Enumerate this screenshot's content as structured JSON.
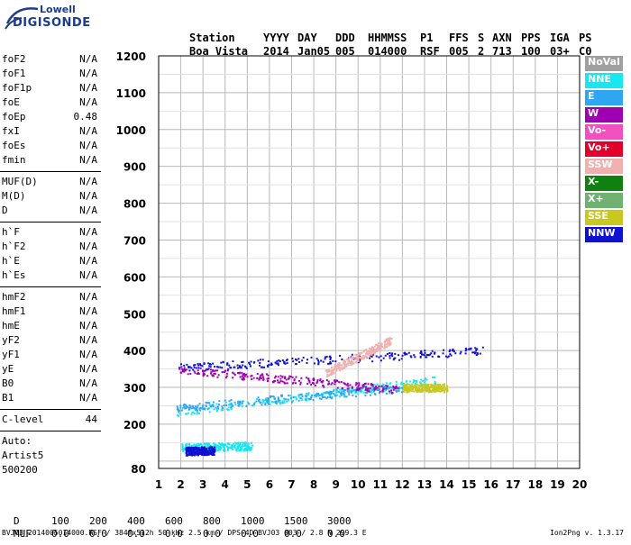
{
  "logo": {
    "line1": "Lowell",
    "line2": "DIGISONDE"
  },
  "header": {
    "row1": [
      "Station",
      "YYYY",
      "DAY",
      "DDD",
      "HHMMSS",
      "P1",
      "FFS",
      "S",
      "AXN",
      "PPS",
      "IGA",
      "PS"
    ],
    "row2": [
      "Boa Vista",
      "2014",
      "Jan05",
      "005",
      "014000",
      "RSF",
      "005",
      "2",
      "713",
      "100",
      "03+",
      "C0"
    ]
  },
  "params": {
    "group1": [
      {
        "name": "foF2",
        "value": "N/A"
      },
      {
        "name": "foF1",
        "value": "N/A"
      },
      {
        "name": "foF1p",
        "value": "N/A"
      },
      {
        "name": "foE",
        "value": "N/A"
      },
      {
        "name": "foEp",
        "value": "0.48"
      },
      {
        "name": "fxI",
        "value": "N/A"
      },
      {
        "name": "foEs",
        "value": "N/A"
      },
      {
        "name": "fmin",
        "value": "N/A"
      }
    ],
    "group2": [
      {
        "name": "MUF(D)",
        "value": "N/A"
      },
      {
        "name": "M(D)",
        "value": "N/A"
      },
      {
        "name": "D",
        "value": "N/A"
      }
    ],
    "group3": [
      {
        "name": "h`F",
        "value": "N/A"
      },
      {
        "name": "h`F2",
        "value": "N/A"
      },
      {
        "name": "h`E",
        "value": "N/A"
      },
      {
        "name": "h`Es",
        "value": "N/A"
      }
    ],
    "group4": [
      {
        "name": "hmF2",
        "value": "N/A"
      },
      {
        "name": "hmF1",
        "value": "N/A"
      },
      {
        "name": "hmE",
        "value": "N/A"
      },
      {
        "name": "yF2",
        "value": "N/A"
      },
      {
        "name": "yF1",
        "value": "N/A"
      },
      {
        "name": "yE",
        "value": "N/A"
      },
      {
        "name": "B0",
        "value": "N/A"
      },
      {
        "name": "B1",
        "value": "N/A"
      }
    ],
    "clevel": {
      "name": "C-level",
      "value": "44"
    },
    "auto": [
      "Auto:",
      "Artist5",
      "500200"
    ]
  },
  "legend": [
    {
      "label": "NoVal",
      "color": "#a0a0a0"
    },
    {
      "label": "NNE",
      "color": "#19e6ee"
    },
    {
      "label": "E",
      "color": "#2ea6f2"
    },
    {
      "label": "W",
      "color": "#a000b0"
    },
    {
      "label": "Vo-",
      "color": "#f050c0"
    },
    {
      "label": "Vo+",
      "color": "#e0002a"
    },
    {
      "label": "SSW",
      "color": "#f0b0b0"
    },
    {
      "label": "X-",
      "color": "#108010"
    },
    {
      "label": "X+",
      "color": "#70b070"
    },
    {
      "label": "SSE",
      "color": "#c8c820"
    },
    {
      "label": "NNW",
      "color": "#1010d0"
    }
  ],
  "chart_data": {
    "type": "scatter",
    "xlim": [
      1,
      20
    ],
    "ylim": [
      80,
      1200
    ],
    "xticks": [
      "1",
      "2",
      "3",
      "4",
      "5",
      "6",
      "7",
      "8",
      "9",
      "10",
      "11",
      "12",
      "13",
      "14",
      "15",
      "16",
      "17",
      "18",
      "19",
      "20"
    ],
    "yticks": [
      "80",
      "200",
      "300",
      "400",
      "500",
      "600",
      "700",
      "800",
      "900",
      "1000",
      "1100",
      "1200"
    ],
    "grid": true,
    "traces": [
      {
        "name": "NNE",
        "color": "#19e6ee",
        "x": [
          1.8,
          13.5
        ],
        "y": [
          235,
          320
        ]
      },
      {
        "name": "E",
        "color": "#2ea6f2",
        "x": [
          1.8,
          12.0
        ],
        "y": [
          245,
          300
        ]
      },
      {
        "name": "NNW",
        "color": "#1010d0",
        "x": [
          1.9,
          15.6
        ],
        "y": [
          355,
          400
        ]
      },
      {
        "name": "W",
        "color": "#a000b0",
        "x": [
          1.9,
          11.8
        ],
        "y": [
          350,
          295
        ]
      },
      {
        "name": "SSE",
        "color": "#c8c820",
        "x": [
          12.0,
          14.0
        ],
        "y": [
          300,
          300
        ]
      },
      {
        "name": "SSW",
        "color": "#f0b0b0",
        "x": [
          8.5,
          11.5
        ],
        "y": [
          340,
          430
        ]
      },
      {
        "name": "NNE",
        "color": "#19e6ee",
        "x": [
          2.0,
          5.2
        ],
        "y": [
          138,
          142
        ]
      },
      {
        "name": "NNW",
        "color": "#1010d0",
        "x": [
          2.2,
          3.5
        ],
        "y": [
          128,
          130
        ]
      }
    ]
  },
  "footer": {
    "d_label": "D",
    "d_values": [
      "100",
      "200",
      "400",
      "600",
      "800",
      "1000",
      "1500",
      "3000",
      "[km]"
    ],
    "muf_label": "MUF",
    "muf_values": [
      "0.0",
      "0.0",
      "0.0",
      "0.0",
      "0.0",
      "0.0",
      "0.0",
      "0.0",
      "[MHz]"
    ]
  },
  "bottom_line": "BVJ03_2014005014000.RSF / 384fx512h 50 kHz 2.5 km / DPS-4D BVJ03 003 / 2.8 N 299.3 E",
  "version": "Ion2Png v. 1.3.17"
}
